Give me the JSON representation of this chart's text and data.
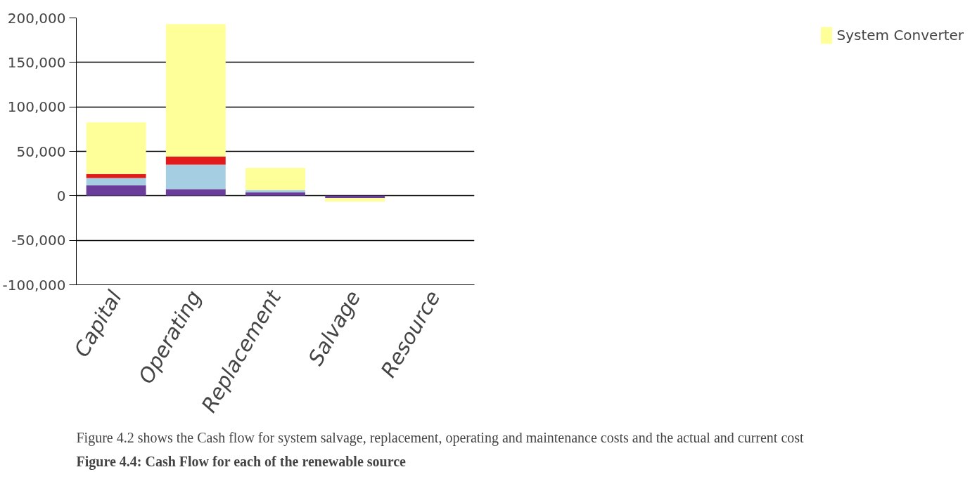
{
  "chart_data": {
    "type": "bar",
    "stacked": true,
    "categories": [
      "Capital",
      "Operating",
      "Replacement",
      "Salvage",
      "Resource"
    ],
    "series": [
      {
        "color": "#6a3d9a",
        "values": [
          12000,
          7500,
          4000,
          -2500,
          0
        ]
      },
      {
        "color": "#a6cee3",
        "values": [
          8000,
          27500,
          2500,
          0,
          0
        ]
      },
      {
        "color": "#e31a1c",
        "values": [
          4500,
          9000,
          0,
          0,
          0
        ]
      },
      {
        "name": "System Converter",
        "color": "#ffff99",
        "values": [
          58000,
          149000,
          25000,
          -4000,
          0
        ]
      }
    ],
    "ylim": [
      -100000,
      200000
    ],
    "yticks": [
      {
        "value": -100000,
        "label": "-100,000"
      },
      {
        "value": -50000,
        "label": "-50,000"
      },
      0,
      {
        "value": 50000,
        "label": "50,000"
      },
      {
        "value": 100000,
        "label": "100,000"
      },
      {
        "value": 150000,
        "label": "150,000"
      },
      {
        "value": 200000,
        "label": "200,000"
      }
    ],
    "grid": "y",
    "legend": "right",
    "annotations": [
      "Figure 4.4: Cash Flow for each of the renewable source",
      "Figure 4.2 shows the Cash flow for system salvage, replacement, operating and maintenance costs and the actual and current cost"
    ]
  }
}
